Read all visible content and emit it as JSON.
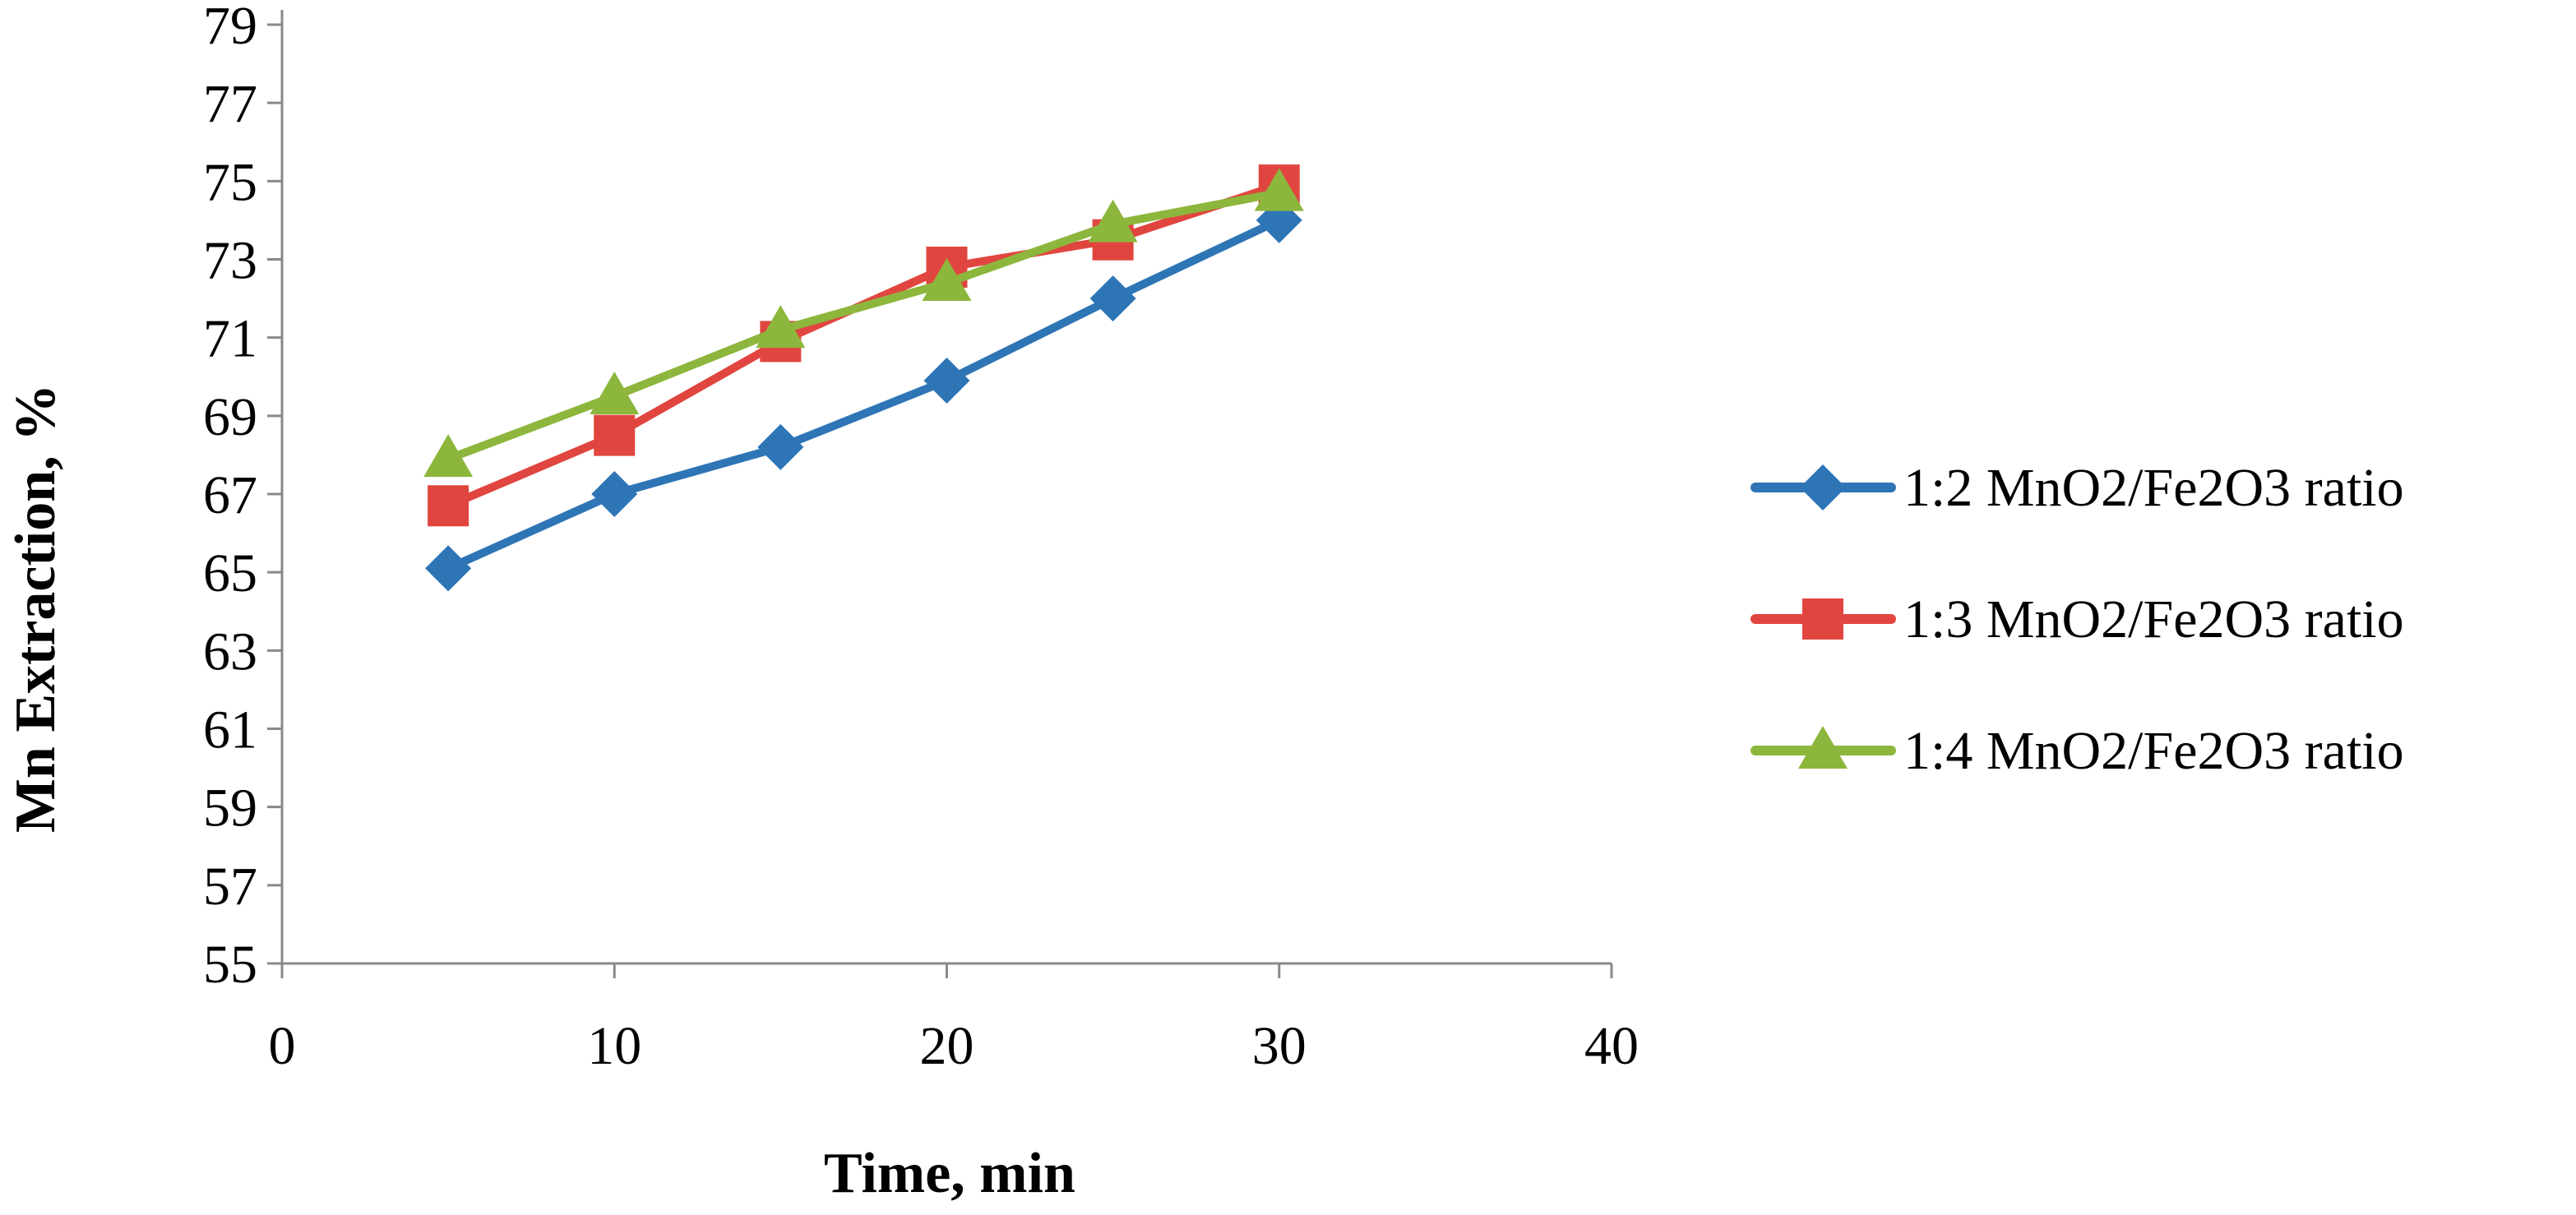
{
  "chart_data": {
    "type": "line",
    "title": "",
    "xlabel": "Time, min",
    "ylabel": "Mn Extraction, %",
    "xlim": [
      0,
      40
    ],
    "ylim": [
      55,
      79
    ],
    "x_ticks": [
      0,
      10,
      20,
      30,
      40
    ],
    "y_ticks": [
      55,
      57,
      59,
      61,
      63,
      65,
      67,
      69,
      71,
      73,
      75,
      77,
      79
    ],
    "grid": false,
    "legend_position": "right",
    "x": [
      5,
      10,
      15,
      20,
      25,
      30
    ],
    "series": [
      {
        "name": "1:2 MnO2/Fe2O3 ratio",
        "color": "#2E75B6",
        "marker": "diamond",
        "values": [
          65.1,
          67.0,
          68.2,
          69.9,
          72.0,
          74.0
        ]
      },
      {
        "name": "1:3 MnO2/Fe2O3 ratio",
        "color": "#E0463F",
        "marker": "square",
        "values": [
          66.7,
          68.5,
          70.9,
          72.8,
          73.5,
          74.9
        ]
      },
      {
        "name": "1:4 MnO2/Fe2O3 ratio",
        "color": "#8DB63C",
        "marker": "triangle",
        "values": [
          67.9,
          69.5,
          71.2,
          72.4,
          73.9,
          74.7
        ]
      }
    ]
  }
}
